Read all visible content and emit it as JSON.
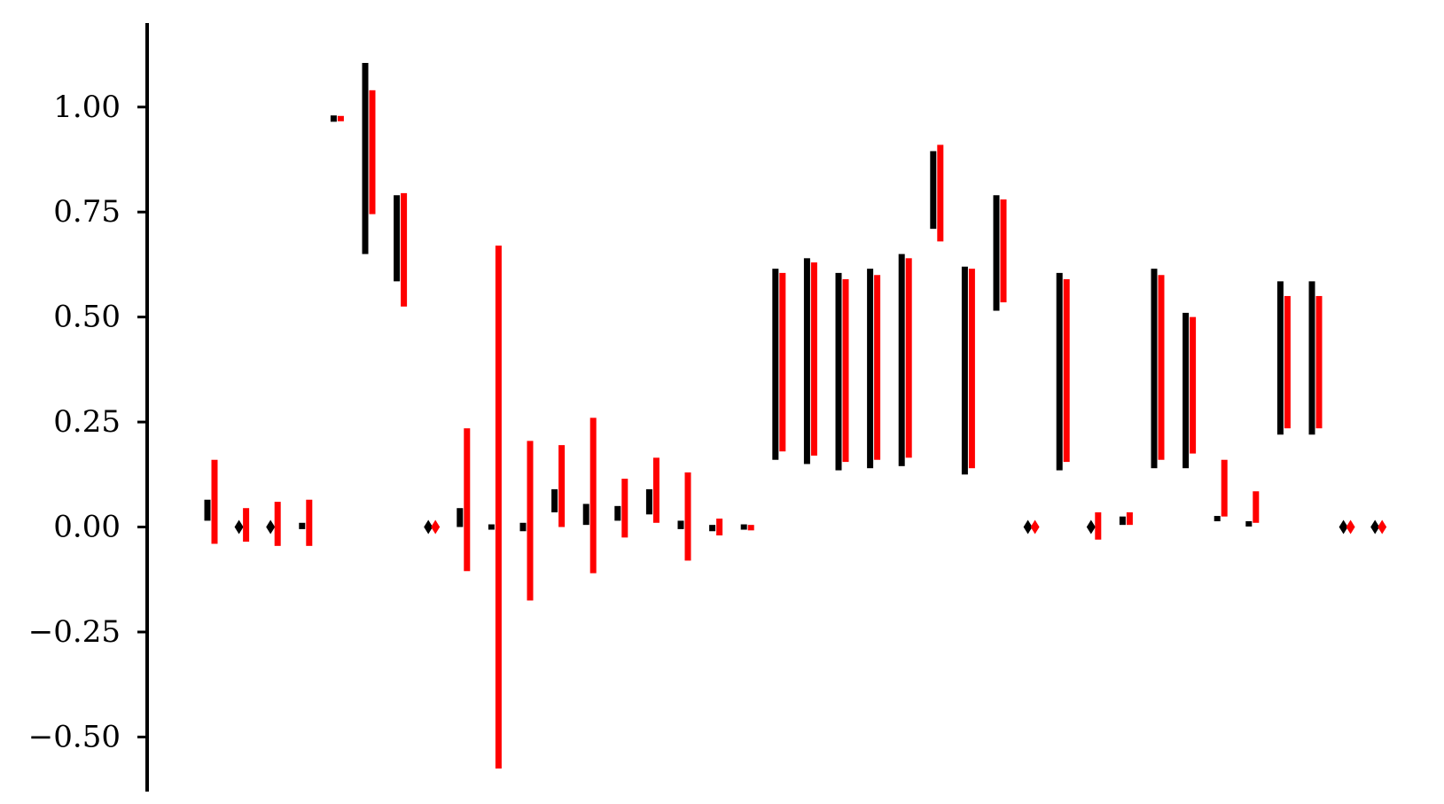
{
  "chart_data": {
    "type": "bar",
    "title": "",
    "xlabel": "",
    "ylabel": "",
    "ylim": [
      -0.63,
      1.2
    ],
    "yticks": [
      -0.5,
      -0.25,
      0.0,
      0.25,
      0.5,
      0.75,
      1.0
    ],
    "ytick_labels": [
      "−0.50",
      "−0.25",
      "0.00",
      "0.25",
      "0.50",
      "0.75",
      "1.00"
    ],
    "grid": false,
    "legend": "none",
    "colors": {
      "series_black": "#000000",
      "series_red": "#ff0000",
      "axis": "#000000"
    },
    "series": [
      {
        "color": "#000000",
        "ranges": [
          [
            0.015,
            0.065
          ],
          [
            0.0,
            0.0
          ],
          [
            0.0,
            0.0
          ],
          [
            -0.005,
            0.01
          ],
          [
            0.965,
            0.98
          ],
          [
            0.65,
            1.105
          ],
          [
            0.585,
            0.79
          ],
          [
            0.0,
            0.0
          ],
          [
            0.0,
            0.045
          ],
          [
            -0.005,
            0.005
          ],
          [
            -0.01,
            0.01
          ],
          [
            0.035,
            0.09
          ],
          [
            0.005,
            0.055
          ],
          [
            0.015,
            0.05
          ],
          [
            0.03,
            0.09
          ],
          [
            -0.005,
            0.015
          ],
          [
            -0.01,
            0.005
          ],
          [
            -0.002,
            0.002
          ],
          [
            0.16,
            0.615
          ],
          [
            0.15,
            0.64
          ],
          [
            0.135,
            0.605
          ],
          [
            0.14,
            0.615
          ],
          [
            0.145,
            0.65
          ],
          [
            0.71,
            0.895
          ],
          [
            0.125,
            0.62
          ],
          [
            0.515,
            0.79
          ],
          [
            0.0,
            0.0
          ],
          [
            0.135,
            0.605
          ],
          [
            0.0,
            0.0
          ],
          [
            0.005,
            0.025
          ],
          [
            0.14,
            0.615
          ],
          [
            0.14,
            0.51
          ],
          [
            0.015,
            0.025
          ],
          [
            0.005,
            0.01
          ],
          [
            0.22,
            0.585
          ],
          [
            0.22,
            0.585
          ],
          [
            0.0,
            0.0
          ],
          [
            0.0,
            0.0
          ]
        ]
      },
      {
        "color": "#ff0000",
        "ranges": [
          [
            -0.04,
            0.16
          ],
          [
            -0.035,
            0.045
          ],
          [
            -0.045,
            0.06
          ],
          [
            -0.045,
            0.065
          ],
          [
            0.97,
            0.975
          ],
          [
            0.745,
            1.04
          ],
          [
            0.525,
            0.795
          ],
          [
            0.0,
            0.0
          ],
          [
            -0.105,
            0.235
          ],
          [
            -0.575,
            0.67
          ],
          [
            -0.175,
            0.205
          ],
          [
            0.0,
            0.195
          ],
          [
            -0.11,
            0.26
          ],
          [
            -0.025,
            0.115
          ],
          [
            0.01,
            0.165
          ],
          [
            -0.08,
            0.13
          ],
          [
            -0.02,
            0.02
          ],
          [
            -0.008,
            0.005
          ],
          [
            0.18,
            0.605
          ],
          [
            0.17,
            0.63
          ],
          [
            0.155,
            0.59
          ],
          [
            0.16,
            0.6
          ],
          [
            0.165,
            0.64
          ],
          [
            0.68,
            0.91
          ],
          [
            0.14,
            0.615
          ],
          [
            0.535,
            0.78
          ],
          [
            0.0,
            0.0
          ],
          [
            0.155,
            0.59
          ],
          [
            -0.03,
            0.035
          ],
          [
            0.005,
            0.035
          ],
          [
            0.16,
            0.6
          ],
          [
            0.175,
            0.5
          ],
          [
            0.025,
            0.16
          ],
          [
            0.01,
            0.085
          ],
          [
            0.235,
            0.55
          ],
          [
            0.235,
            0.55
          ],
          [
            0.0,
            0.0
          ],
          [
            0.0,
            0.0
          ]
        ]
      }
    ]
  }
}
